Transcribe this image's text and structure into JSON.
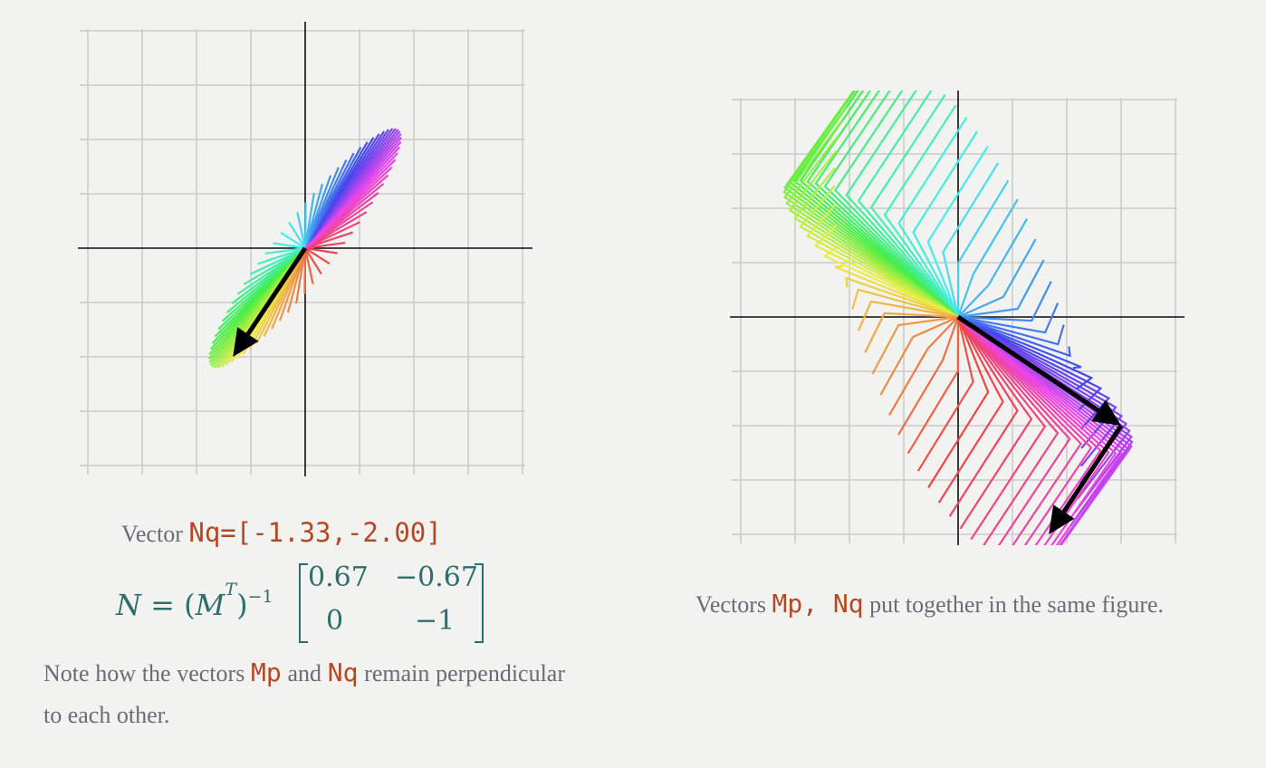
{
  "left_figure": {
    "vector_prefix": "Vector",
    "vector_code": "Nq=[-1.33,-2.00]",
    "formula": {
      "lhs_symbol": "N",
      "matrix_symbol": "M",
      "transpose_sup": "T",
      "inverse_sup": "−1",
      "matrix": [
        [
          "0.67",
          "−0.67"
        ],
        [
          "0",
          "−1"
        ]
      ]
    },
    "caption": {
      "t1": "Note how the vectors",
      "c1": "Mp",
      "t2": "and",
      "c2": "Nq",
      "t3": "remain perpendicular to each other."
    },
    "vector_Nq": [
      -1.33,
      -2.0
    ],
    "fan_shape": "ellipse",
    "fan_count": 72
  },
  "right_figure": {
    "caption": {
      "t1": "Vectors",
      "c1": "Mp, Nq",
      "t2": "put together in the same figure."
    },
    "vector_Mp": [
      3,
      -2
    ],
    "vector_Nq": [
      -1.33,
      -2.0
    ],
    "fan_count": 72
  },
  "colors": {
    "grid": "#c9c9c9",
    "axis": "#111111",
    "arrow": "#000000",
    "code": "#b14a22",
    "formula": "#2d6e6a",
    "text": "#6b6b78"
  }
}
